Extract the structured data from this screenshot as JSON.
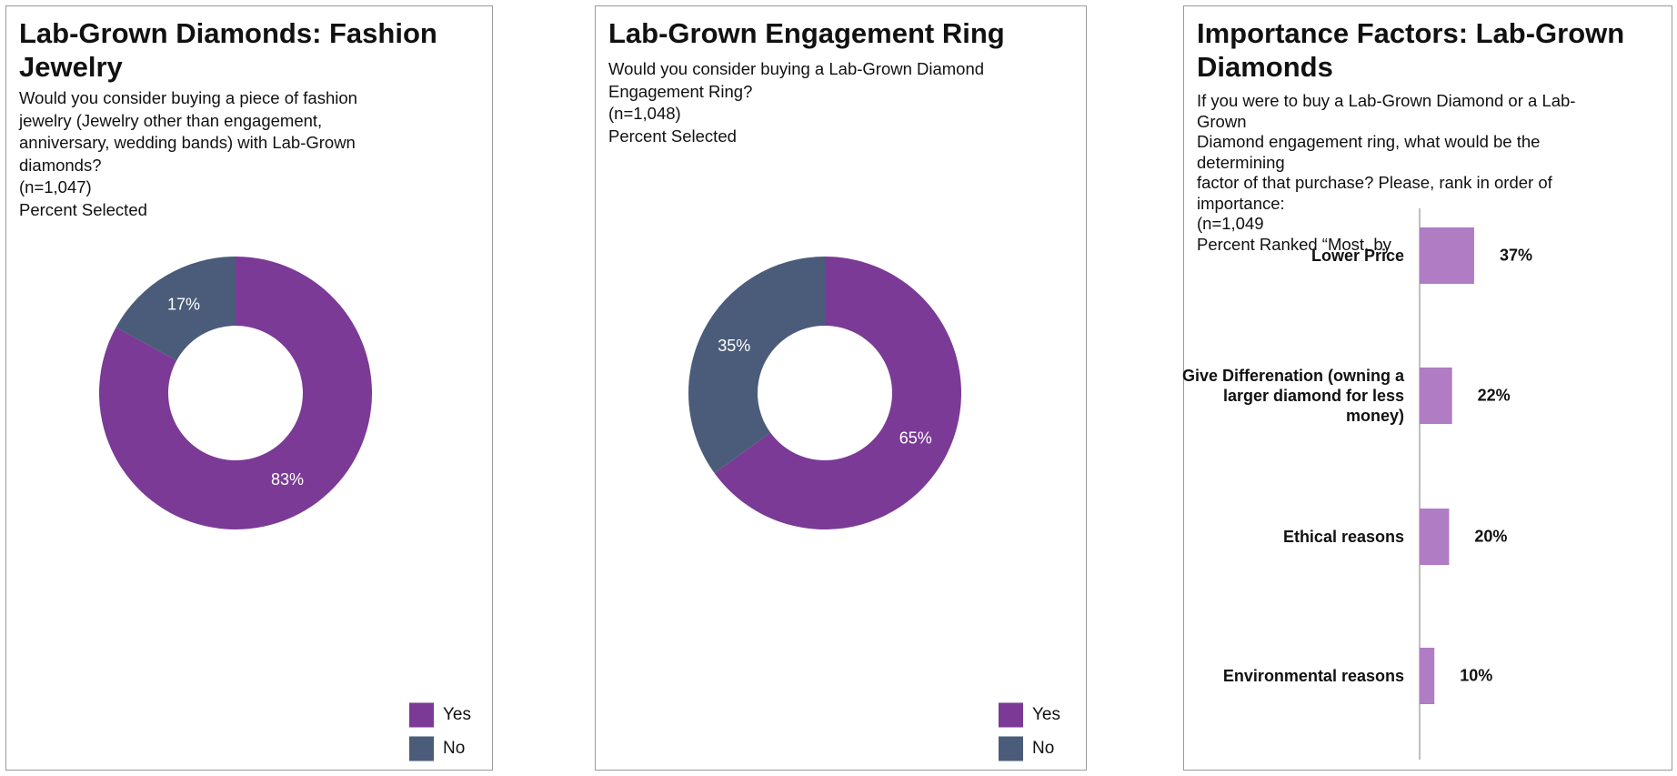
{
  "chart_data": [
    {
      "type": "pie",
      "title_lines": [
        "Lab-Grown Diamonds: Fashion",
        "Jewelry"
      ],
      "subtitle_lines": [
        "Would you consider buying a piece of fashion",
        "jewelry (Jewelry other than engagement,",
        "anniversary, wedding bands) with Lab-Grown",
        "diamonds?",
        "(n=1,047)",
        "Percent Selected"
      ],
      "categories": [
        "Yes",
        "No"
      ],
      "values": [
        83,
        17
      ],
      "value_labels": [
        "83%",
        "17%"
      ],
      "colors": [
        "#7b3a96",
        "#4a5c7a"
      ]
    },
    {
      "type": "pie",
      "title_lines": [
        "Lab-Grown Engagement Ring"
      ],
      "subtitle_lines": [
        "Would you consider buying a Lab-Grown Diamond",
        "Engagement Ring?",
        "(n=1,048)",
        "Percent Selected"
      ],
      "categories": [
        "Yes",
        "No"
      ],
      "values": [
        65,
        35
      ],
      "value_labels": [
        "65%",
        "35%"
      ],
      "colors": [
        "#7b3a96",
        "#4a5c7a"
      ]
    },
    {
      "type": "hbar",
      "title_lines": [
        "Importance Factors: Lab-Grown",
        "Diamonds"
      ],
      "subtitle_lines": [
        "If you were to buy a Lab-Grown Diamond or a Lab-",
        "Grown",
        "Diamond engagement ring, what would be the",
        "determining",
        "factor of that purchase? Please, rank in order of",
        "importance:",
        "(n=1,049",
        "Percent Ranked “Most, by"
      ],
      "categories": [
        "Lower Price",
        "Give Differenation (owning a larger diamond for less money)",
        "Ethical reasons",
        "Environmental reasons"
      ],
      "values": [
        37,
        22,
        20,
        10
      ],
      "value_labels": [
        "37%",
        "22%",
        "20%",
        "10%"
      ],
      "color": "#b07cc4",
      "xlim": [
        0,
        100
      ]
    }
  ]
}
